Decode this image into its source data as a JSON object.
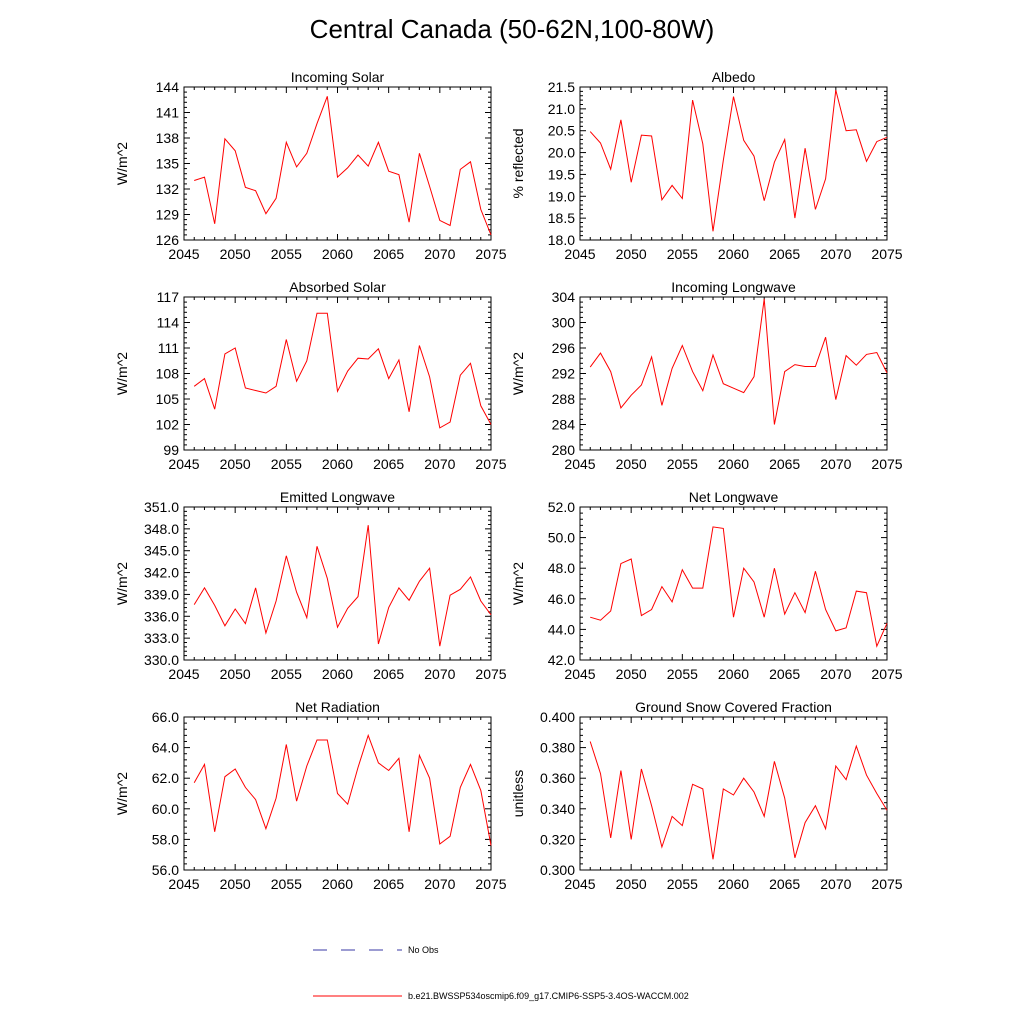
{
  "title": "Central Canada (50-62N,100-80W)",
  "colors": {
    "model": "#ff0000",
    "obs": "#3a3aa6",
    "axis": "#000000"
  },
  "legend": {
    "obs_label": "No Obs",
    "model_label": "b.e21.BWSSP534oscmip6.f09_g17.CMIP6-SSP5-3.4OS-WACCM.002"
  },
  "chart_data": [
    {
      "type": "line",
      "title": "Incoming Solar",
      "ylabel": "W/m^2",
      "xlim": [
        2045,
        2075
      ],
      "ylim": [
        126,
        144
      ],
      "yticks": [
        126,
        129,
        132,
        135,
        138,
        141,
        144
      ],
      "ytick_labels": [
        "126",
        "129",
        "132",
        "135",
        "138",
        "141",
        "144"
      ],
      "xticks": [
        2045,
        2050,
        2055,
        2060,
        2065,
        2070,
        2075
      ],
      "xtick_labels": [
        "2045",
        "2050",
        "2055",
        "2060",
        "2065",
        "2070",
        "2075"
      ],
      "x": [
        2046,
        2047,
        2048,
        2049,
        2050,
        2051,
        2052,
        2053,
        2054,
        2055,
        2056,
        2057,
        2058,
        2059,
        2060,
        2061,
        2062,
        2063,
        2064,
        2065,
        2066,
        2067,
        2068,
        2069,
        2070,
        2071,
        2072,
        2073,
        2074,
        2075
      ],
      "values": [
        133.0,
        133.4,
        127.9,
        137.9,
        136.5,
        132.2,
        131.8,
        129.1,
        130.9,
        137.5,
        134.6,
        136.2,
        139.7,
        142.9,
        133.4,
        134.5,
        136.0,
        134.7,
        137.5,
        134.1,
        133.7,
        128.1,
        136.2,
        132.3,
        128.3,
        127.7,
        134.3,
        135.2,
        129.6,
        126.6
      ]
    },
    {
      "type": "line",
      "title": "Albedo",
      "ylabel": "% reflected",
      "xlim": [
        2045,
        2075
      ],
      "ylim": [
        18.0,
        21.5
      ],
      "yticks": [
        18.0,
        18.5,
        19.0,
        19.5,
        20.0,
        20.5,
        21.0,
        21.5
      ],
      "ytick_labels": [
        "18.0",
        "18.5",
        "19.0",
        "19.5",
        "20.0",
        "20.5",
        "21.0",
        "21.5"
      ],
      "xticks": [
        2045,
        2050,
        2055,
        2060,
        2065,
        2070,
        2075
      ],
      "xtick_labels": [
        "2045",
        "2050",
        "2055",
        "2060",
        "2065",
        "2070",
        "2075"
      ],
      "x": [
        2046,
        2047,
        2048,
        2049,
        2050,
        2051,
        2052,
        2053,
        2054,
        2055,
        2056,
        2057,
        2058,
        2059,
        2060,
        2061,
        2062,
        2063,
        2064,
        2065,
        2066,
        2067,
        2068,
        2069,
        2070,
        2071,
        2072,
        2073,
        2074,
        2075
      ],
      "values": [
        20.48,
        20.22,
        19.62,
        20.75,
        19.32,
        20.4,
        20.38,
        18.92,
        19.25,
        18.95,
        21.2,
        20.2,
        18.2,
        19.82,
        21.28,
        20.28,
        19.92,
        18.9,
        19.78,
        20.3,
        18.5,
        20.1,
        18.7,
        19.4,
        21.43,
        20.5,
        20.52,
        19.8,
        20.25,
        20.35
      ]
    },
    {
      "type": "line",
      "title": "Absorbed Solar",
      "ylabel": "W/m^2",
      "xlim": [
        2045,
        2075
      ],
      "ylim": [
        99,
        117
      ],
      "yticks": [
        99,
        102,
        105,
        108,
        111,
        114,
        117
      ],
      "ytick_labels": [
        "99",
        "102",
        "105",
        "108",
        "111",
        "114",
        "117"
      ],
      "xticks": [
        2045,
        2050,
        2055,
        2060,
        2065,
        2070,
        2075
      ],
      "xtick_labels": [
        "2045",
        "2050",
        "2055",
        "2060",
        "2065",
        "2070",
        "2075"
      ],
      "x": [
        2046,
        2047,
        2048,
        2049,
        2050,
        2051,
        2052,
        2053,
        2054,
        2055,
        2056,
        2057,
        2058,
        2059,
        2060,
        2061,
        2062,
        2063,
        2064,
        2065,
        2066,
        2067,
        2068,
        2069,
        2070,
        2071,
        2072,
        2073,
        2074,
        2075
      ],
      "values": [
        106.5,
        107.4,
        103.8,
        110.3,
        111.0,
        106.3,
        106.0,
        105.7,
        106.5,
        112.0,
        107.1,
        109.5,
        115.1,
        115.1,
        105.9,
        108.3,
        109.8,
        109.7,
        110.9,
        107.4,
        109.6,
        103.5,
        111.3,
        107.6,
        101.6,
        102.3,
        107.8,
        109.2,
        104.2,
        102.0
      ]
    },
    {
      "type": "line",
      "title": "Incoming Longwave",
      "ylabel": "W/m^2",
      "xlim": [
        2045,
        2075
      ],
      "ylim": [
        280,
        304
      ],
      "yticks": [
        280,
        284,
        288,
        292,
        296,
        300,
        304
      ],
      "ytick_labels": [
        "280",
        "284",
        "288",
        "292",
        "296",
        "300",
        "304"
      ],
      "xticks": [
        2045,
        2050,
        2055,
        2060,
        2065,
        2070,
        2075
      ],
      "xtick_labels": [
        "2045",
        "2050",
        "2055",
        "2060",
        "2065",
        "2070",
        "2075"
      ],
      "x": [
        2046,
        2047,
        2048,
        2049,
        2050,
        2051,
        2052,
        2053,
        2054,
        2055,
        2056,
        2057,
        2058,
        2059,
        2060,
        2061,
        2062,
        2063,
        2064,
        2065,
        2066,
        2067,
        2068,
        2069,
        2070,
        2071,
        2072,
        2073,
        2074,
        2075
      ],
      "values": [
        293.0,
        295.2,
        292.3,
        286.6,
        288.6,
        290.2,
        294.6,
        287.0,
        292.8,
        296.4,
        292.3,
        289.3,
        294.9,
        290.4,
        289.7,
        289.0,
        291.5,
        303.7,
        284.0,
        292.3,
        293.4,
        293.1,
        293.1,
        297.7,
        287.9,
        294.8,
        293.3,
        295.0,
        295.3,
        292.1
      ]
    },
    {
      "type": "line",
      "title": "Emitted Longwave",
      "ylabel": "W/m^2",
      "xlim": [
        2045,
        2075
      ],
      "ylim": [
        330.0,
        351.0
      ],
      "yticks": [
        330.0,
        333.0,
        336.0,
        339.0,
        342.0,
        345.0,
        348.0,
        351.0
      ],
      "ytick_labels": [
        "330.0",
        "333.0",
        "336.0",
        "339.0",
        "342.0",
        "345.0",
        "348.0",
        "351.0"
      ],
      "xticks": [
        2045,
        2050,
        2055,
        2060,
        2065,
        2070,
        2075
      ],
      "xtick_labels": [
        "2045",
        "2050",
        "2055",
        "2060",
        "2065",
        "2070",
        "2075"
      ],
      "x": [
        2046,
        2047,
        2048,
        2049,
        2050,
        2051,
        2052,
        2053,
        2054,
        2055,
        2056,
        2057,
        2058,
        2059,
        2060,
        2061,
        2062,
        2063,
        2064,
        2065,
        2066,
        2067,
        2068,
        2069,
        2070,
        2071,
        2072,
        2073,
        2074,
        2075
      ],
      "values": [
        337.6,
        339.9,
        337.5,
        334.7,
        337.0,
        335.0,
        339.9,
        333.7,
        338.1,
        344.3,
        339.3,
        335.8,
        345.6,
        341.2,
        334.5,
        337.1,
        338.7,
        348.5,
        332.2,
        337.2,
        339.9,
        338.2,
        340.8,
        342.6,
        331.9,
        338.9,
        339.7,
        341.4,
        338.1,
        336.2
      ]
    },
    {
      "type": "line",
      "title": "Net Longwave",
      "ylabel": "W/m^2",
      "xlim": [
        2045,
        2075
      ],
      "ylim": [
        42.0,
        52.0
      ],
      "yticks": [
        42.0,
        44.0,
        46.0,
        48.0,
        50.0,
        52.0
      ],
      "ytick_labels": [
        "42.0",
        "44.0",
        "46.0",
        "48.0",
        "50.0",
        "52.0"
      ],
      "xticks": [
        2045,
        2050,
        2055,
        2060,
        2065,
        2070,
        2075
      ],
      "xtick_labels": [
        "2045",
        "2050",
        "2055",
        "2060",
        "2065",
        "2070",
        "2075"
      ],
      "x": [
        2046,
        2047,
        2048,
        2049,
        2050,
        2051,
        2052,
        2053,
        2054,
        2055,
        2056,
        2057,
        2058,
        2059,
        2060,
        2061,
        2062,
        2063,
        2064,
        2065,
        2066,
        2067,
        2068,
        2069,
        2070,
        2071,
        2072,
        2073,
        2074,
        2075
      ],
      "values": [
        44.8,
        44.6,
        45.2,
        48.3,
        48.6,
        44.9,
        45.3,
        46.8,
        45.8,
        47.9,
        46.7,
        46.7,
        50.7,
        50.6,
        44.8,
        48.0,
        47.1,
        44.8,
        48.0,
        45.0,
        46.4,
        45.1,
        47.8,
        45.3,
        43.9,
        44.1,
        46.5,
        46.4,
        42.9,
        44.4
      ]
    },
    {
      "type": "line",
      "title": "Net Radiation",
      "ylabel": "W/m^2",
      "xlim": [
        2045,
        2075
      ],
      "ylim": [
        56.0,
        66.0
      ],
      "yticks": [
        56.0,
        58.0,
        60.0,
        62.0,
        64.0,
        66.0
      ],
      "ytick_labels": [
        "56.0",
        "58.0",
        "60.0",
        "62.0",
        "64.0",
        "66.0"
      ],
      "xticks": [
        2045,
        2050,
        2055,
        2060,
        2065,
        2070,
        2075
      ],
      "xtick_labels": [
        "2045",
        "2050",
        "2055",
        "2060",
        "2065",
        "2070",
        "2075"
      ],
      "x": [
        2046,
        2047,
        2048,
        2049,
        2050,
        2051,
        2052,
        2053,
        2054,
        2055,
        2056,
        2057,
        2058,
        2059,
        2060,
        2061,
        2062,
        2063,
        2064,
        2065,
        2066,
        2067,
        2068,
        2069,
        2070,
        2071,
        2072,
        2073,
        2074,
        2075
      ],
      "values": [
        61.7,
        62.9,
        58.5,
        62.1,
        62.6,
        61.4,
        60.6,
        58.7,
        60.7,
        64.2,
        60.5,
        62.8,
        64.5,
        64.5,
        61.0,
        60.3,
        62.7,
        64.8,
        63.0,
        62.5,
        63.3,
        58.5,
        63.5,
        62.0,
        57.7,
        58.2,
        61.4,
        62.9,
        61.2,
        57.6
      ]
    },
    {
      "type": "line",
      "title": "Ground Snow Covered Fraction",
      "ylabel": "unitless",
      "xlim": [
        2045,
        2075
      ],
      "ylim": [
        0.3,
        0.4
      ],
      "yticks": [
        0.3,
        0.32,
        0.34,
        0.36,
        0.38,
        0.4
      ],
      "ytick_labels": [
        "0.300",
        "0.320",
        "0.340",
        "0.360",
        "0.380",
        "0.400"
      ],
      "xticks": [
        2045,
        2050,
        2055,
        2060,
        2065,
        2070,
        2075
      ],
      "xtick_labels": [
        "2045",
        "2050",
        "2055",
        "2060",
        "2065",
        "2070",
        "2075"
      ],
      "x": [
        2046,
        2047,
        2048,
        2049,
        2050,
        2051,
        2052,
        2053,
        2054,
        2055,
        2056,
        2057,
        2058,
        2059,
        2060,
        2061,
        2062,
        2063,
        2064,
        2065,
        2066,
        2067,
        2068,
        2069,
        2070,
        2071,
        2072,
        2073,
        2074,
        2075
      ],
      "values": [
        0.384,
        0.363,
        0.321,
        0.365,
        0.32,
        0.366,
        0.342,
        0.315,
        0.335,
        0.329,
        0.356,
        0.353,
        0.307,
        0.353,
        0.349,
        0.36,
        0.351,
        0.335,
        0.371,
        0.347,
        0.308,
        0.331,
        0.342,
        0.327,
        0.368,
        0.359,
        0.381,
        0.362,
        0.35,
        0.339
      ]
    }
  ]
}
